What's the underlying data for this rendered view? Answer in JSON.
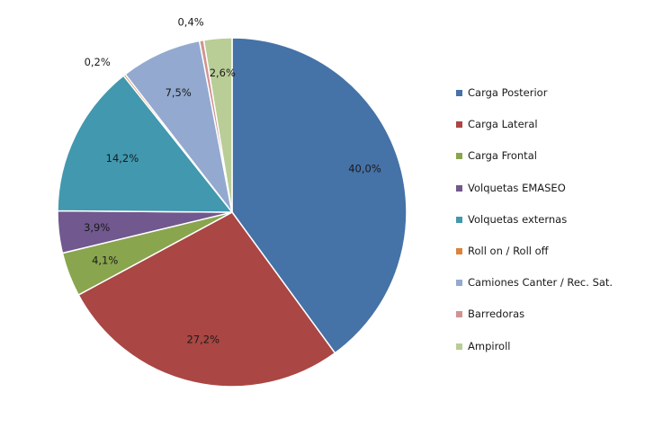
{
  "chart_data": {
    "type": "pie",
    "title": "",
    "start_angle_deg": 0,
    "direction": "clockwise",
    "legend_position": "right",
    "slices": [
      {
        "name": "Carga Posterior",
        "value": 40.0,
        "label": "40,0%",
        "color": "#4572A7"
      },
      {
        "name": "Carga Lateral",
        "value": 27.2,
        "label": "27,2%",
        "color": "#AA4643"
      },
      {
        "name": "Carga Frontal",
        "value": 4.1,
        "label": "4,1%",
        "color": "#89A54E"
      },
      {
        "name": "Volquetas EMASEO",
        "value": 3.9,
        "label": "3,9%",
        "color": "#71588F"
      },
      {
        "name": "Volquetas externas",
        "value": 14.2,
        "label": "14,2%",
        "color": "#4198AF"
      },
      {
        "name": "Roll on / Roll off",
        "value": 0.2,
        "label": "0,2%",
        "color": "#DB843D"
      },
      {
        "name": "Camiones Canter / Rec. Sat.",
        "value": 7.5,
        "label": "7,5%",
        "color": "#93A9CF"
      },
      {
        "name": "Barredoras",
        "value": 0.4,
        "label": "0,4%",
        "color": "#D19392"
      },
      {
        "name": "Ampiroll",
        "value": 2.6,
        "label": "2,6%",
        "color": "#B9CD96"
      }
    ]
  }
}
